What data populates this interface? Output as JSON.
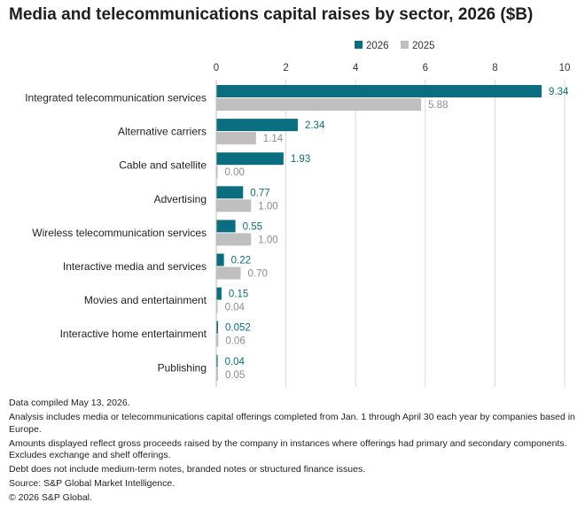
{
  "chart_data": {
    "type": "bar",
    "orientation": "horizontal",
    "title": "Media and telecommunications capital raises by sector, 2026 ($B)",
    "categories": [
      "Integrated telecommunication services",
      "Alternative carriers",
      "Cable and satellite",
      "Advertising",
      "Wireless telecommunication services",
      "Interactive media and services",
      "Movies and entertainment",
      "Interactive home entertainment",
      "Publishing"
    ],
    "series": [
      {
        "name": "2026",
        "color": "#0b6e7f",
        "values": [
          9.34,
          2.34,
          1.93,
          0.77,
          0.55,
          0.22,
          0.15,
          0.052,
          0.04
        ],
        "labels": [
          "9.34",
          "2.34",
          "1.93",
          "0.77",
          "0.55",
          "0.22",
          "0.15",
          "0.052",
          "0.04"
        ]
      },
      {
        "name": "2025",
        "color": "#bfbfbf",
        "values": [
          5.88,
          1.14,
          0.0,
          1.0,
          1.0,
          0.7,
          0.04,
          0.06,
          0.05
        ],
        "labels": [
          "5.88",
          "1.14",
          "0.00",
          "1.00",
          "1.00",
          "0.70",
          "0.04",
          "0.06",
          "0.05"
        ]
      }
    ],
    "xlim": [
      0,
      10
    ],
    "xticks": [
      0,
      2,
      4,
      6,
      8,
      10
    ],
    "xtick_labels": [
      "0",
      "2",
      "4",
      "6",
      "8",
      "10"
    ],
    "grid": "vertical",
    "legend": "top"
  },
  "notes": [
    "Data compiled May 13, 2026.",
    "Analysis includes media or telecommunications capital offerings completed from Jan. 1 through April 30 each year by companies based in Europe.",
    "Amounts displayed reflect gross proceeds raised by the company in instances where offerings had primary and secondary components. Excludes exchange and shelf offerings.",
    "Debt does not include medium-term notes, branded notes or structured finance issues.",
    "Source: S&P Global Market Intelligence.",
    "© 2026 S&P Global."
  ]
}
